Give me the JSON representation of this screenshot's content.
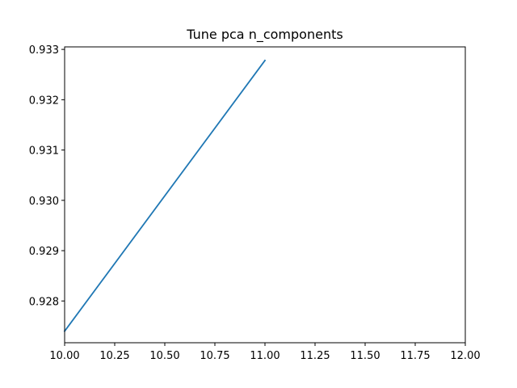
{
  "chart_data": {
    "type": "line",
    "title": "Tune pca n_components",
    "xlabel": "",
    "ylabel": "",
    "xlim": [
      10.0,
      12.0
    ],
    "ylim": [
      0.92717,
      0.93305
    ],
    "xticks": [
      10.0,
      10.25,
      10.5,
      10.75,
      11.0,
      11.25,
      11.5,
      11.75,
      12.0
    ],
    "xtick_labels": [
      "10.00",
      "10.25",
      "10.50",
      "10.75",
      "11.00",
      "11.25",
      "11.50",
      "11.75",
      "12.00"
    ],
    "yticks": [
      0.928,
      0.929,
      0.93,
      0.931,
      0.932,
      0.933
    ],
    "ytick_labels": [
      "0.928",
      "0.929",
      "0.930",
      "0.931",
      "0.932",
      "0.933"
    ],
    "grid": false,
    "series": [
      {
        "x": [
          10,
          11
        ],
        "y": [
          0.9274,
          0.93278
        ],
        "color": "#1f77b4"
      }
    ]
  }
}
